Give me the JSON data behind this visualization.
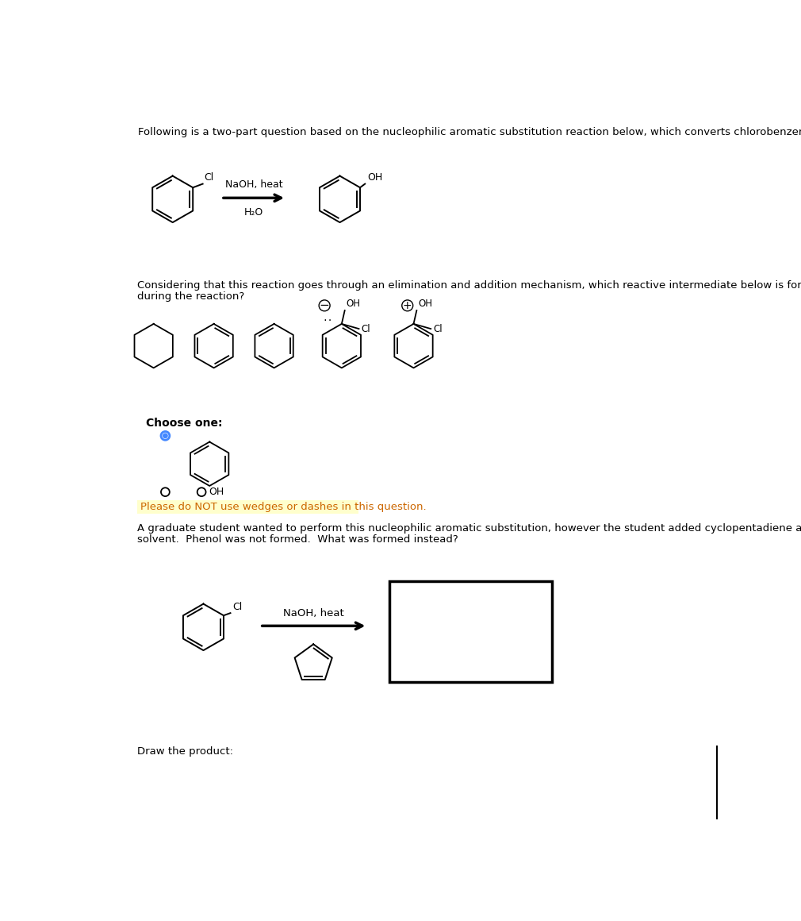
{
  "title_text": "Following is a two-part question based on the nucleophilic aromatic substitution reaction below, which converts chlorobenzene to phenol.",
  "question1_line1": "Considering that this reaction goes through an elimination and addition mechanism, which reactive intermediate below is formed",
  "question1_line2": "during the reaction?",
  "choose_one_text": "Choose one:",
  "warning_text": "Please do NOT use wedges or dashes in this question.",
  "question2_line1": "A graduate student wanted to perform this nucleophilic aromatic substitution, however the student added cyclopentadiene as a",
  "question2_line2": "solvent.  Phenol was not formed.  What was formed instead?",
  "draw_product_text": "Draw the product:",
  "reagents1": "NaOH, heat",
  "reagents1b": "H₂O",
  "reagents2": "NaOH, heat",
  "background_color": "#ffffff",
  "warning_bg": "#ffffee",
  "text_color": "#000000",
  "warning_color": "#cc6600"
}
